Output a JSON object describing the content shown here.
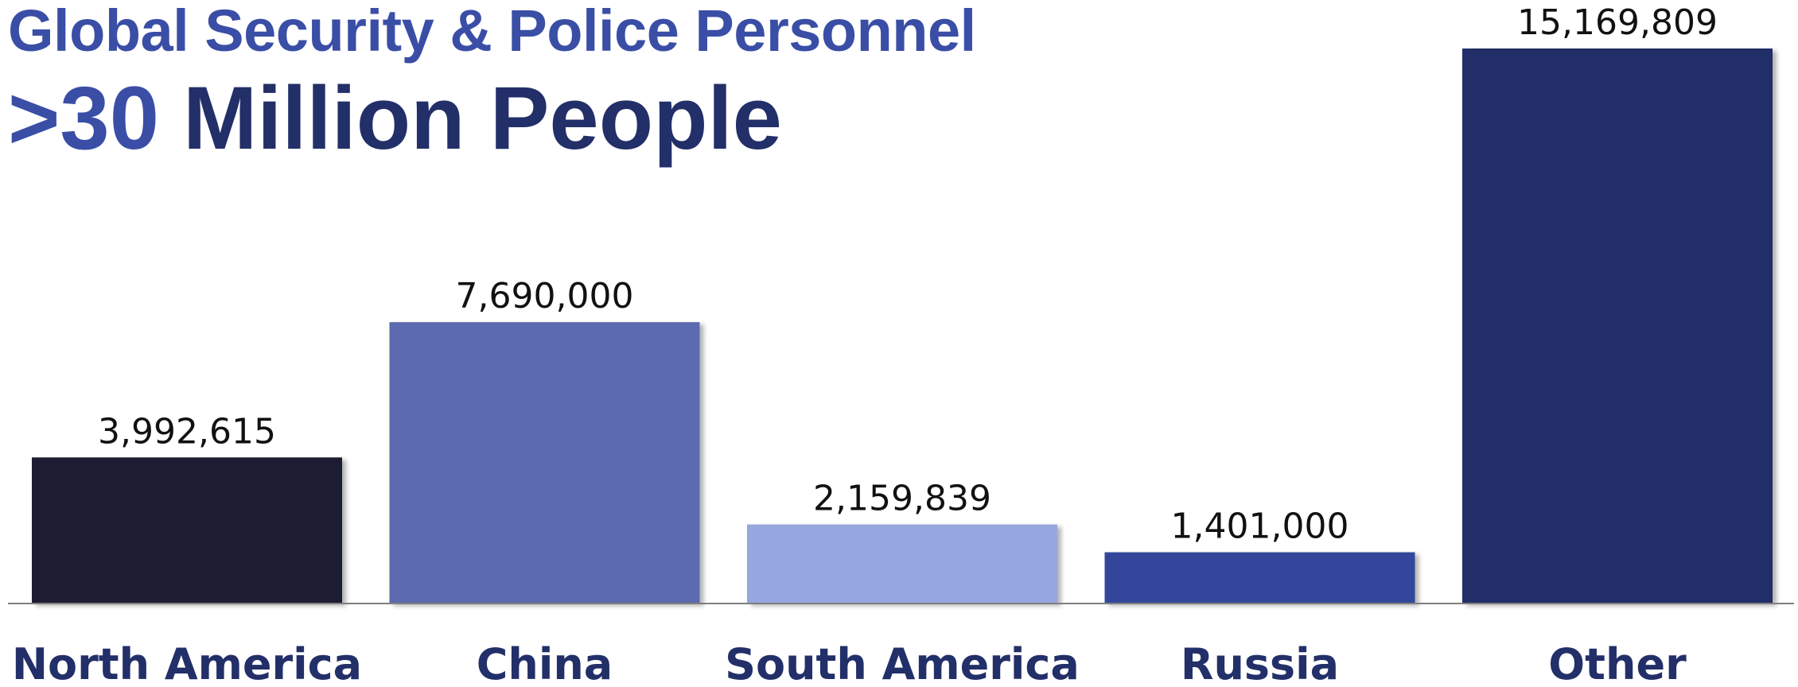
{
  "chart_data": {
    "type": "bar",
    "title": "Global Security & Police Personnel",
    "subtitle_prefix": ">30",
    "subtitle_rest": "Million People",
    "categories": [
      "North America",
      "China",
      "South America",
      "Russia",
      "Other"
    ],
    "values": [
      3992615,
      7690000,
      2159839,
      1401000,
      15169809
    ],
    "value_labels": [
      "3,992,615",
      "7,690,000",
      "2,159,839",
      "1,401,000",
      "15,169,809"
    ],
    "bar_colors": [
      "#1b1f33",
      "#5b6ab0",
      "#96a6de",
      "#30479b",
      "#222f68"
    ],
    "xlabel": "",
    "ylabel": "",
    "ylim": [
      0,
      15169809
    ],
    "grid": false,
    "legend": "none"
  },
  "colors": {
    "title": "#3a4ea6",
    "subtitle_prefix": "#3a4ea6",
    "subtitle_rest": "#222f68",
    "category_label": "#222f68",
    "axis_line": "#7f7f7f"
  }
}
